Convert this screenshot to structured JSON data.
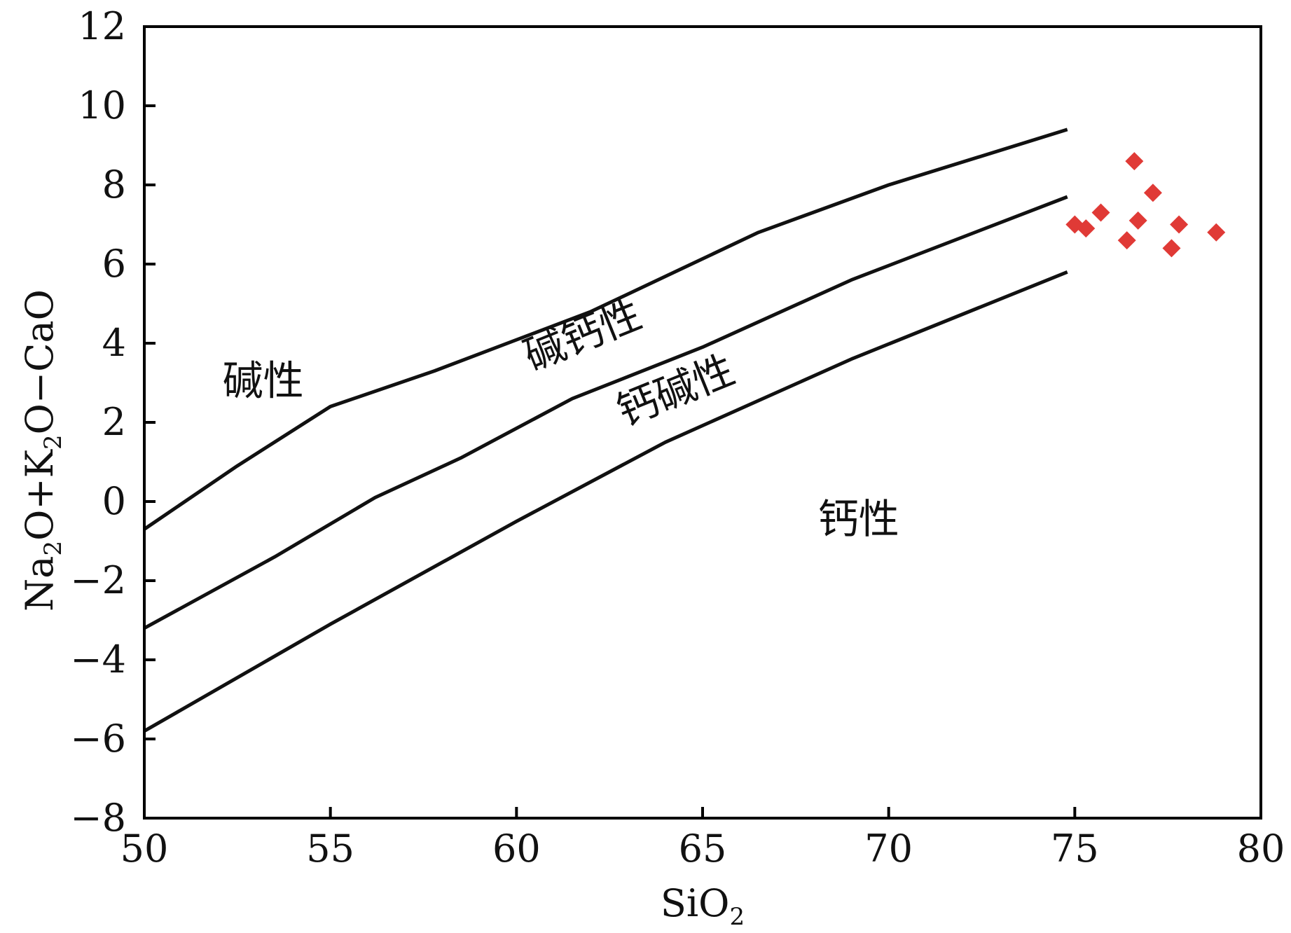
{
  "chart_data": {
    "type": "scatter",
    "title": "",
    "xlabel": {
      "main": "SiO",
      "sub": "2"
    },
    "ylabel": {
      "parts": [
        {
          "text": "Na",
          "sub": false
        },
        {
          "text": "2",
          "sub": true
        },
        {
          "text": "O+K",
          "sub": false
        },
        {
          "text": "2",
          "sub": true
        },
        {
          "text": "O−CaO",
          "sub": false
        }
      ]
    },
    "xlim": [
      50,
      80
    ],
    "ylim": [
      -8,
      12
    ],
    "xticks": [
      50,
      55,
      60,
      65,
      70,
      75,
      80
    ],
    "xtick_labels": [
      "50",
      "55",
      "60",
      "65",
      "70",
      "75",
      "80"
    ],
    "yticks": [
      -8,
      -6,
      -4,
      -2,
      0,
      2,
      4,
      6,
      8,
      10,
      12
    ],
    "ytick_labels": [
      "−8",
      "−6",
      "−4",
      "−2",
      "0",
      "2",
      "4",
      "6",
      "8",
      "10",
      "12"
    ],
    "grid": false,
    "boundaries": [
      {
        "name": "alkalic-alkali-calcic",
        "points": [
          [
            50,
            -0.7
          ],
          [
            52.5,
            0.9
          ],
          [
            55,
            2.4
          ],
          [
            57.8,
            3.3
          ],
          [
            62,
            4.8
          ],
          [
            66.5,
            6.8
          ],
          [
            70,
            8.0
          ],
          [
            74.8,
            9.4
          ]
        ]
      },
      {
        "name": "alkali-calcic-calc-alkalic",
        "points": [
          [
            50,
            -3.2
          ],
          [
            53.5,
            -1.4
          ],
          [
            56.2,
            0.1
          ],
          [
            58.5,
            1.1
          ],
          [
            61.5,
            2.6
          ],
          [
            65,
            3.9
          ],
          [
            69,
            5.6
          ],
          [
            74.8,
            7.7
          ]
        ]
      },
      {
        "name": "calc-alkalic-calcic",
        "points": [
          [
            50,
            -5.8
          ],
          [
            55,
            -3.1
          ],
          [
            60,
            -0.5
          ],
          [
            64,
            1.5
          ],
          [
            69,
            3.6
          ],
          [
            74.8,
            5.8
          ]
        ]
      }
    ],
    "region_labels": [
      {
        "text": "碱性",
        "x": 52.1,
        "y": 2.7,
        "rotate": 0
      },
      {
        "text": "碱钙性",
        "x": 60.4,
        "y": 3.3,
        "rotate": -22
      },
      {
        "text": "钙碱性",
        "x": 62.9,
        "y": 1.9,
        "rotate": -22
      },
      {
        "text": "钙性",
        "x": 68.1,
        "y": -0.8,
        "rotate": 0
      }
    ],
    "series": [
      {
        "marker": "diamond",
        "color": "#e03a36",
        "points": [
          [
            75.0,
            7.0
          ],
          [
            75.3,
            6.9
          ],
          [
            75.7,
            7.3
          ],
          [
            76.4,
            6.6
          ],
          [
            76.6,
            8.6
          ],
          [
            76.7,
            7.1
          ],
          [
            77.1,
            7.8
          ],
          [
            77.6,
            6.4
          ],
          [
            77.8,
            7.0
          ],
          [
            78.8,
            6.8
          ]
        ]
      }
    ]
  }
}
